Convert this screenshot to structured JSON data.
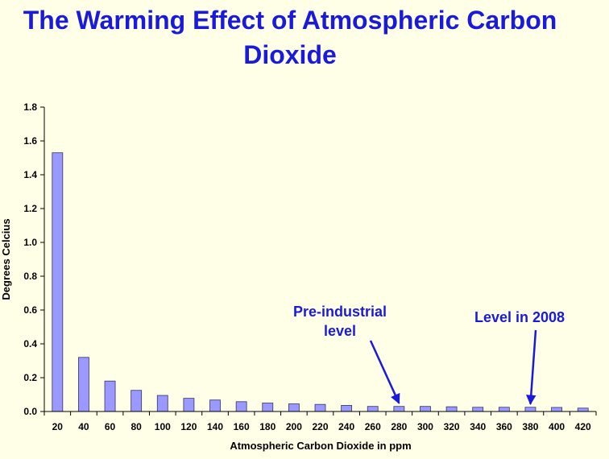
{
  "page": {
    "title": "The Warming Effect of Atmospheric Carbon Dioxide"
  },
  "colors": {
    "background": "#ffffe8",
    "title": "#1a1adb",
    "bar_fill": "#9999ff",
    "bar_stroke": "#333366",
    "annotation": "#1a1adb"
  },
  "chart_data": {
    "type": "bar",
    "title": "The Warming Effect of Atmospheric Carbon Dioxide",
    "xlabel": "Atmospheric Carbon Dioxide in ppm",
    "ylabel": "Degrees Celcius",
    "ylim": [
      0,
      1.8
    ],
    "yticks": [
      0.0,
      0.2,
      0.4,
      0.6,
      0.8,
      1.0,
      1.2,
      1.4,
      1.6,
      1.8
    ],
    "ytick_labels": [
      "0.0",
      "0.2",
      "0.4",
      "0.6",
      "0.8",
      "1.0",
      "1.2",
      "1.4",
      "1.6",
      "1.8"
    ],
    "grid": false,
    "legend": "none",
    "categories": [
      "20",
      "40",
      "60",
      "80",
      "100",
      "120",
      "140",
      "160",
      "180",
      "200",
      "220",
      "240",
      "260",
      "280",
      "300",
      "320",
      "340",
      "360",
      "380",
      "400",
      "420"
    ],
    "values": [
      1.53,
      0.32,
      0.18,
      0.125,
      0.095,
      0.078,
      0.068,
      0.058,
      0.05,
      0.045,
      0.042,
      0.036,
      0.03,
      0.03,
      0.03,
      0.028,
      0.025,
      0.025,
      0.025,
      0.024,
      0.02
    ],
    "annotations": [
      {
        "lines": [
          "Pre-industrial",
          "level"
        ],
        "category": "280"
      },
      {
        "lines": [
          "Level in 2008"
        ],
        "category": "380"
      }
    ]
  }
}
